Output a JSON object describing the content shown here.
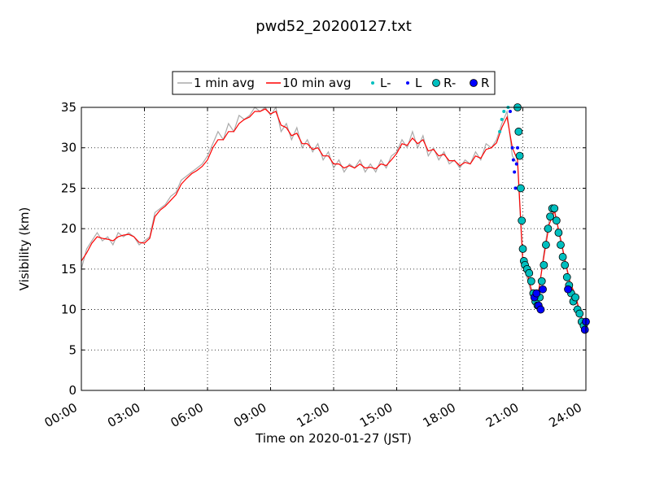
{
  "chart_data": {
    "type": "line",
    "title": "pwd52_20200127.txt",
    "xlabel": "Time on 2020-01-27 (JST)",
    "ylabel": "Visibility (km)",
    "x_unit": "hours (JST)",
    "xlim": [
      0,
      24
    ],
    "ylim": [
      0,
      35
    ],
    "x_ticks": [
      0,
      3,
      6,
      9,
      12,
      15,
      18,
      21,
      24
    ],
    "x_tick_labels": [
      "00:00",
      "03:00",
      "06:00",
      "09:00",
      "12:00",
      "15:00",
      "18:00",
      "21:00",
      "24:00"
    ],
    "y_ticks": [
      0,
      5,
      10,
      15,
      20,
      25,
      30,
      35
    ],
    "y_tick_labels": [
      "0",
      "5",
      "10",
      "15",
      "20",
      "25",
      "30",
      "35"
    ],
    "grid": true,
    "legend_position": "top-center-outside",
    "series": [
      {
        "name": "1 min avg",
        "style": "line",
        "color": "#aaaaaa",
        "points": [
          [
            0.0,
            15.0
          ],
          [
            0.25,
            17.5
          ],
          [
            0.5,
            18.5
          ],
          [
            0.75,
            19.5
          ],
          [
            1.0,
            18.5
          ],
          [
            1.25,
            19.0
          ],
          [
            1.5,
            18.0
          ],
          [
            1.75,
            19.5
          ],
          [
            2.0,
            19.0
          ],
          [
            2.25,
            19.5
          ],
          [
            2.5,
            19.0
          ],
          [
            2.75,
            18.0
          ],
          [
            3.0,
            18.5
          ],
          [
            3.25,
            19.0
          ],
          [
            3.5,
            22.0
          ],
          [
            3.75,
            22.5
          ],
          [
            4.0,
            23.0
          ],
          [
            4.25,
            24.0
          ],
          [
            4.5,
            24.5
          ],
          [
            4.75,
            26.0
          ],
          [
            5.0,
            26.5
          ],
          [
            5.25,
            27.0
          ],
          [
            5.5,
            27.5
          ],
          [
            5.75,
            28.0
          ],
          [
            6.0,
            29.0
          ],
          [
            6.25,
            30.5
          ],
          [
            6.5,
            32.0
          ],
          [
            6.75,
            31.0
          ],
          [
            7.0,
            33.0
          ],
          [
            7.25,
            32.0
          ],
          [
            7.5,
            34.0
          ],
          [
            7.75,
            33.5
          ],
          [
            8.0,
            34.0
          ],
          [
            8.25,
            35.0
          ],
          [
            8.5,
            34.5
          ],
          [
            8.75,
            35.0
          ],
          [
            9.0,
            34.0
          ],
          [
            9.25,
            35.0
          ],
          [
            9.5,
            32.0
          ],
          [
            9.75,
            33.0
          ],
          [
            10.0,
            31.0
          ],
          [
            10.25,
            32.5
          ],
          [
            10.5,
            30.0
          ],
          [
            10.75,
            31.0
          ],
          [
            11.0,
            29.5
          ],
          [
            11.25,
            30.5
          ],
          [
            11.5,
            28.5
          ],
          [
            11.75,
            29.5
          ],
          [
            12.0,
            27.5
          ],
          [
            12.25,
            28.5
          ],
          [
            12.5,
            27.0
          ],
          [
            12.75,
            28.0
          ],
          [
            13.0,
            27.5
          ],
          [
            13.25,
            28.5
          ],
          [
            13.5,
            27.0
          ],
          [
            13.75,
            28.0
          ],
          [
            14.0,
            27.0
          ],
          [
            14.25,
            28.5
          ],
          [
            14.5,
            27.5
          ],
          [
            14.75,
            29.0
          ],
          [
            15.0,
            29.5
          ],
          [
            15.25,
            31.0
          ],
          [
            15.5,
            30.0
          ],
          [
            15.75,
            32.0
          ],
          [
            16.0,
            30.0
          ],
          [
            16.25,
            31.5
          ],
          [
            16.5,
            29.0
          ],
          [
            16.75,
            30.0
          ],
          [
            17.0,
            28.5
          ],
          [
            17.25,
            29.5
          ],
          [
            17.5,
            28.0
          ],
          [
            17.75,
            28.5
          ],
          [
            18.0,
            27.5
          ],
          [
            18.25,
            28.5
          ],
          [
            18.5,
            28.0
          ],
          [
            18.75,
            29.5
          ],
          [
            19.0,
            28.5
          ],
          [
            19.25,
            30.5
          ],
          [
            19.5,
            30.0
          ],
          [
            19.75,
            31.0
          ],
          [
            20.0,
            33.0
          ],
          [
            20.25,
            34.5
          ],
          [
            20.5,
            29.0
          ],
          [
            20.75,
            28.0
          ],
          [
            21.0,
            15.5
          ],
          [
            21.25,
            13.5
          ],
          [
            21.5,
            11.0
          ],
          [
            21.75,
            12.0
          ],
          [
            22.0,
            17.0
          ],
          [
            22.25,
            21.0
          ],
          [
            22.5,
            22.5
          ],
          [
            22.75,
            19.0
          ],
          [
            23.0,
            16.0
          ],
          [
            23.25,
            13.0
          ],
          [
            23.5,
            11.5
          ],
          [
            23.75,
            9.0
          ],
          [
            24.0,
            7.5
          ]
        ]
      },
      {
        "name": "10 min avg",
        "style": "line",
        "color": "#ff0000",
        "points": [
          [
            0.0,
            16.0
          ],
          [
            0.25,
            17.0
          ],
          [
            0.5,
            18.2
          ],
          [
            0.75,
            19.0
          ],
          [
            1.0,
            18.8
          ],
          [
            1.25,
            18.7
          ],
          [
            1.5,
            18.5
          ],
          [
            1.75,
            19.0
          ],
          [
            2.0,
            19.2
          ],
          [
            2.25,
            19.3
          ],
          [
            2.5,
            19.0
          ],
          [
            2.75,
            18.3
          ],
          [
            3.0,
            18.2
          ],
          [
            3.25,
            18.8
          ],
          [
            3.5,
            21.5
          ],
          [
            3.75,
            22.3
          ],
          [
            4.0,
            22.8
          ],
          [
            4.25,
            23.5
          ],
          [
            4.5,
            24.2
          ],
          [
            4.75,
            25.5
          ],
          [
            5.0,
            26.2
          ],
          [
            5.25,
            26.8
          ],
          [
            5.5,
            27.2
          ],
          [
            5.75,
            27.7
          ],
          [
            6.0,
            28.5
          ],
          [
            6.25,
            30.0
          ],
          [
            6.5,
            31.0
          ],
          [
            6.75,
            31.0
          ],
          [
            7.0,
            32.0
          ],
          [
            7.25,
            32.0
          ],
          [
            7.5,
            33.0
          ],
          [
            7.75,
            33.5
          ],
          [
            8.0,
            33.8
          ],
          [
            8.25,
            34.5
          ],
          [
            8.5,
            34.5
          ],
          [
            8.75,
            34.8
          ],
          [
            9.0,
            34.2
          ],
          [
            9.25,
            34.5
          ],
          [
            9.5,
            32.8
          ],
          [
            9.75,
            32.5
          ],
          [
            10.0,
            31.5
          ],
          [
            10.25,
            31.8
          ],
          [
            10.5,
            30.5
          ],
          [
            10.75,
            30.5
          ],
          [
            11.0,
            29.8
          ],
          [
            11.25,
            30.0
          ],
          [
            11.5,
            29.0
          ],
          [
            11.75,
            29.0
          ],
          [
            12.0,
            28.0
          ],
          [
            12.25,
            28.0
          ],
          [
            12.5,
            27.5
          ],
          [
            12.75,
            27.8
          ],
          [
            13.0,
            27.5
          ],
          [
            13.25,
            28.0
          ],
          [
            13.5,
            27.5
          ],
          [
            13.75,
            27.6
          ],
          [
            14.0,
            27.4
          ],
          [
            14.25,
            28.0
          ],
          [
            14.5,
            27.8
          ],
          [
            14.75,
            28.5
          ],
          [
            15.0,
            29.3
          ],
          [
            15.25,
            30.5
          ],
          [
            15.5,
            30.3
          ],
          [
            15.75,
            31.2
          ],
          [
            16.0,
            30.5
          ],
          [
            16.25,
            31.0
          ],
          [
            16.5,
            29.6
          ],
          [
            16.75,
            29.8
          ],
          [
            17.0,
            29.0
          ],
          [
            17.25,
            29.2
          ],
          [
            17.5,
            28.4
          ],
          [
            17.75,
            28.4
          ],
          [
            18.0,
            27.8
          ],
          [
            18.25,
            28.2
          ],
          [
            18.5,
            28.0
          ],
          [
            18.75,
            29.0
          ],
          [
            19.0,
            28.7
          ],
          [
            19.25,
            29.8
          ],
          [
            19.5,
            30.0
          ],
          [
            19.75,
            30.6
          ],
          [
            20.0,
            32.5
          ],
          [
            20.25,
            33.8
          ],
          [
            20.5,
            30.0
          ],
          [
            20.75,
            28.5
          ],
          [
            21.0,
            16.0
          ],
          [
            21.25,
            14.0
          ],
          [
            21.5,
            11.5
          ],
          [
            21.75,
            12.3
          ],
          [
            22.0,
            16.5
          ],
          [
            22.25,
            20.5
          ],
          [
            22.5,
            22.2
          ],
          [
            22.75,
            19.3
          ],
          [
            23.0,
            16.2
          ],
          [
            23.25,
            13.3
          ],
          [
            23.5,
            11.8
          ],
          [
            23.75,
            9.3
          ],
          [
            24.0,
            7.8
          ]
        ]
      },
      {
        "name": "L-",
        "style": "small-dot",
        "color": "#00bfbf",
        "points": [
          [
            19.9,
            32.0
          ],
          [
            20.0,
            33.5
          ],
          [
            20.1,
            34.5
          ],
          [
            20.3,
            35.0
          ]
        ]
      },
      {
        "name": "L",
        "style": "small-dot",
        "color": "#0000ff",
        "points": [
          [
            20.4,
            34.5
          ],
          [
            20.5,
            30.0
          ],
          [
            20.55,
            28.5
          ],
          [
            20.6,
            27.0
          ],
          [
            20.65,
            25.0
          ],
          [
            20.7,
            28.0
          ],
          [
            20.75,
            30.0
          ]
        ]
      },
      {
        "name": "R-",
        "style": "circle",
        "color": "#00bfbf",
        "points": [
          [
            20.75,
            35.0
          ],
          [
            20.8,
            32.0
          ],
          [
            20.85,
            29.0
          ],
          [
            20.9,
            25.0
          ],
          [
            20.95,
            21.0
          ],
          [
            21.0,
            17.5
          ],
          [
            21.05,
            16.0
          ],
          [
            21.1,
            15.5
          ],
          [
            21.2,
            15.0
          ],
          [
            21.3,
            14.5
          ],
          [
            21.4,
            13.5
          ],
          [
            21.5,
            12.0
          ],
          [
            21.6,
            11.0
          ],
          [
            21.7,
            10.5
          ],
          [
            21.8,
            11.5
          ],
          [
            21.9,
            13.5
          ],
          [
            22.0,
            15.5
          ],
          [
            22.1,
            18.0
          ],
          [
            22.2,
            20.0
          ],
          [
            22.3,
            21.5
          ],
          [
            22.4,
            22.5
          ],
          [
            22.5,
            22.5
          ],
          [
            22.6,
            21.0
          ],
          [
            22.7,
            19.5
          ],
          [
            22.8,
            18.0
          ],
          [
            22.9,
            16.5
          ],
          [
            23.0,
            15.5
          ],
          [
            23.1,
            14.0
          ],
          [
            23.2,
            13.0
          ],
          [
            23.3,
            12.0
          ],
          [
            23.4,
            11.0
          ],
          [
            23.5,
            11.5
          ],
          [
            23.6,
            10.0
          ],
          [
            23.7,
            9.5
          ],
          [
            23.8,
            8.5
          ],
          [
            23.9,
            8.0
          ]
        ]
      },
      {
        "name": "R",
        "style": "circle",
        "color": "#0000ff",
        "points": [
          [
            21.55,
            11.5
          ],
          [
            21.65,
            12.0
          ],
          [
            21.75,
            10.5
          ],
          [
            21.85,
            10.0
          ],
          [
            21.95,
            12.5
          ],
          [
            23.15,
            12.5
          ],
          [
            23.95,
            7.5
          ],
          [
            24.0,
            8.5
          ]
        ]
      }
    ]
  }
}
